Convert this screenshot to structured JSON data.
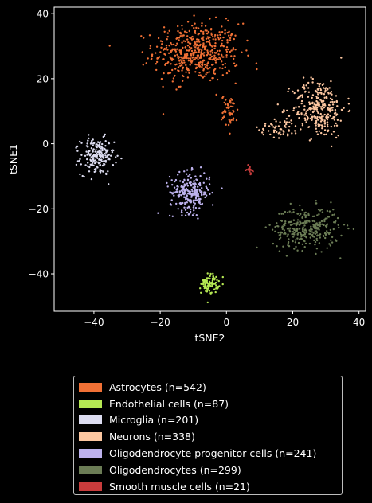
{
  "chart_data": {
    "type": "scatter",
    "title": "",
    "xlabel": "tSNE2",
    "ylabel": "tSNE1",
    "xlim": [
      -52,
      42
    ],
    "ylim": [
      -51.5,
      42
    ],
    "xticks": [
      -40,
      -20,
      0,
      20,
      40
    ],
    "yticks": [
      -40,
      -20,
      0,
      20,
      40
    ],
    "grid": false,
    "legend_position": "bottom",
    "series": [
      {
        "name": "Astrocytes (n=542)",
        "color": "#f07035",
        "count": 542,
        "clusters": [
          {
            "cx": -9,
            "cy": 28,
            "sx": 6.5,
            "sy": 4.5,
            "weight": 0.9
          },
          {
            "cx": 1,
            "cy": 10,
            "sx": 1.2,
            "sy": 2.5,
            "weight": 0.1
          }
        ]
      },
      {
        "name": "Endothelial cells (n=87)",
        "color": "#b5e853",
        "count": 87,
        "clusters": [
          {
            "cx": -5,
            "cy": -43,
            "sx": 1.3,
            "sy": 1.5,
            "weight": 1
          }
        ]
      },
      {
        "name": "Microglia (n=201)",
        "color": "#dcdcf0",
        "count": 201,
        "clusters": [
          {
            "cx": -39,
            "cy": -4,
            "sx": 2.5,
            "sy": 2.8,
            "weight": 1
          }
        ]
      },
      {
        "name": "Neurons (n=338)",
        "color": "#fcc6a0",
        "count": 338,
        "clusters": [
          {
            "cx": 28,
            "cy": 11,
            "sx": 4.0,
            "sy": 4.5,
            "weight": 0.85
          },
          {
            "cx": 16,
            "cy": 5,
            "sx": 3.0,
            "sy": 1.6,
            "weight": 0.15
          }
        ]
      },
      {
        "name": "Oligodendrocyte progenitor cells (n=241)",
        "color": "#bdb2ed",
        "count": 241,
        "clusters": [
          {
            "cx": -11,
            "cy": -15,
            "sx": 3.0,
            "sy": 3.0,
            "weight": 1
          }
        ]
      },
      {
        "name": "Oligodendrocytes (n=299)",
        "color": "#6b7c55",
        "count": 299,
        "clusters": [
          {
            "cx": 24,
            "cy": -26,
            "sx": 5.0,
            "sy": 3.2,
            "weight": 1
          }
        ]
      },
      {
        "name": "Smooth muscle cells (n=21)",
        "color": "#c83c3c",
        "count": 21,
        "clusters": [
          {
            "cx": 7,
            "cy": -8,
            "sx": 0.4,
            "sy": 0.6,
            "weight": 1
          }
        ]
      }
    ]
  }
}
